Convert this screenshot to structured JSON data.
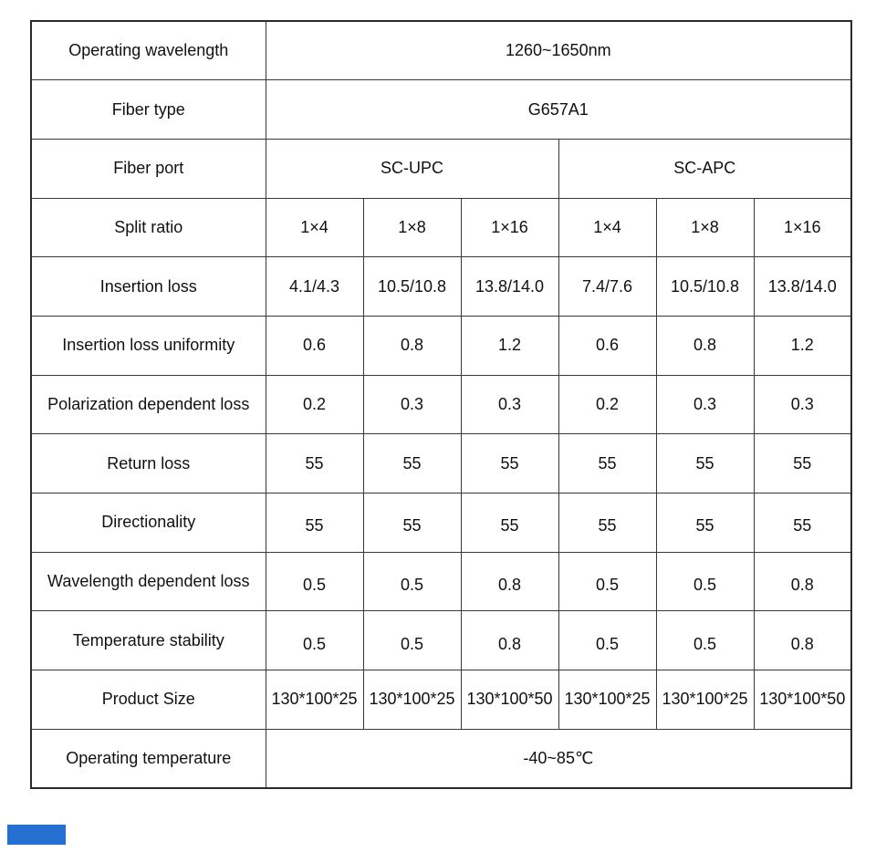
{
  "table": {
    "rows": [
      {
        "label": "Operating wavelength",
        "value": "1260~1650nm"
      },
      {
        "label": "Fiber type",
        "value": "G657A1"
      },
      {
        "label": "Fiber port",
        "values": [
          "SC-UPC",
          "SC-APC"
        ]
      },
      {
        "label": "Split ratio",
        "values": [
          "1×4",
          "1×8",
          "1×16",
          "1×4",
          "1×8",
          "1×16"
        ]
      },
      {
        "label": "Insertion loss",
        "values": [
          "4.1/4.3",
          "10.5/10.8",
          "13.8/14.0",
          "7.4/7.6",
          "10.5/10.8",
          "13.8/14.0"
        ]
      },
      {
        "label": "Insertion loss uniformity",
        "values": [
          "0.6",
          "0.8",
          "1.2",
          "0.6",
          "0.8",
          "1.2"
        ]
      },
      {
        "label": "Polarization dependent loss",
        "values": [
          "0.2",
          "0.3",
          "0.3",
          "0.2",
          "0.3",
          "0.3"
        ]
      },
      {
        "label": "Return loss",
        "values": [
          "55",
          "55",
          "55",
          "55",
          "55",
          "55"
        ]
      },
      {
        "label": "Directionality",
        "values": [
          "55",
          "55",
          "55",
          "55",
          "55",
          "55"
        ]
      },
      {
        "label": "Wavelength dependent loss",
        "values": [
          "0.5",
          "0.5",
          "0.8",
          "0.5",
          "0.5",
          "0.8"
        ]
      },
      {
        "label": "Temperature stability",
        "values": [
          "0.5",
          "0.5",
          "0.8",
          "0.5",
          "0.5",
          "0.8"
        ]
      },
      {
        "label": "Product Size",
        "values": [
          "130*100*25",
          "130*100*25",
          "130*100*50",
          "130*100*25",
          "130*100*25",
          "130*100*50"
        ]
      },
      {
        "label": "Operating temperature",
        "value": "-40~85℃"
      }
    ]
  },
  "colors": {
    "grid_line": "#383838",
    "outer_border": "#2a2a2a",
    "text": "#111111",
    "blue_fragment": "#2570d0"
  }
}
